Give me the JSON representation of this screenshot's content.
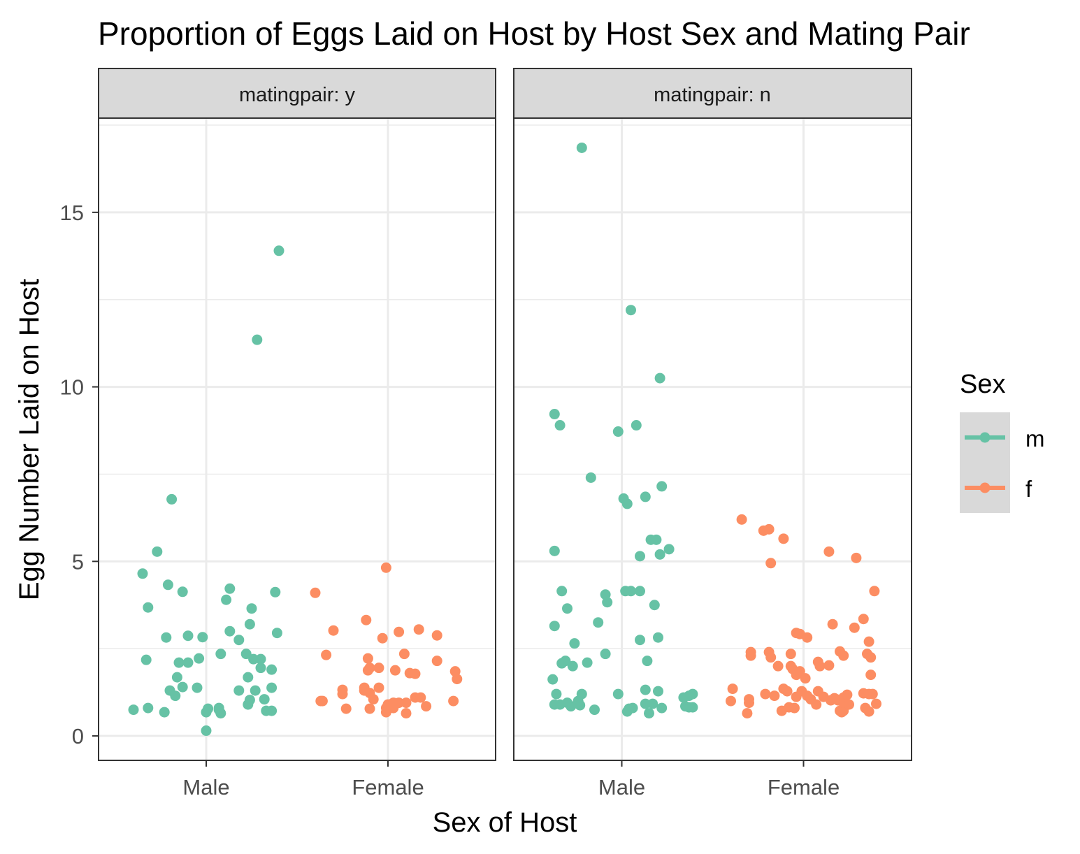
{
  "title": "Proportion of Eggs Laid on Host by Host Sex and Mating Pair",
  "chart_data": {
    "type": "scatter",
    "title": "Proportion of Eggs Laid on Host by Host Sex and Mating Pair",
    "xlabel": "Sex of Host",
    "ylabel": "Egg Number Laid on Host",
    "categories": [
      "Male",
      "Female"
    ],
    "ylim": [
      -0.7,
      17.7
    ],
    "yticks": [
      0,
      5,
      10,
      15
    ],
    "grid": true,
    "legend": {
      "title": "Sex",
      "position": "right",
      "entries": [
        {
          "label": "m",
          "color": "#66c2a5"
        },
        {
          "label": "f",
          "color": "#fc8d62"
        }
      ]
    },
    "panels": [
      {
        "label": "matingpair: y",
        "series": [
          {
            "name": "m",
            "category": "Male",
            "color": "#66c2a5",
            "points": [
              [
                -0.4,
                0.75
              ],
              [
                -0.35,
                4.65
              ],
              [
                -0.33,
                2.18
              ],
              [
                -0.32,
                3.68
              ],
              [
                -0.32,
                0.8
              ],
              [
                -0.27,
                5.28
              ],
              [
                -0.23,
                0.68
              ],
              [
                -0.22,
                2.82
              ],
              [
                -0.21,
                4.33
              ],
              [
                -0.2,
                1.3
              ],
              [
                -0.19,
                6.78
              ],
              [
                -0.17,
                1.15
              ],
              [
                -0.16,
                1.68
              ],
              [
                -0.15,
                2.1
              ],
              [
                -0.13,
                4.13
              ],
              [
                -0.13,
                1.4
              ],
              [
                -0.1,
                2.87
              ],
              [
                -0.1,
                2.1
              ],
              [
                -0.05,
                1.38
              ],
              [
                -0.04,
                2.22
              ],
              [
                -0.02,
                2.83
              ],
              [
                0.0,
                0.15
              ],
              [
                0.0,
                0.68
              ],
              [
                0.01,
                0.78
              ],
              [
                0.07,
                0.75
              ],
              [
                0.07,
                0.8
              ],
              [
                0.08,
                0.65
              ],
              [
                0.08,
                2.35
              ],
              [
                0.11,
                3.9
              ],
              [
                0.13,
                4.22
              ],
              [
                0.13,
                3.0
              ],
              [
                0.18,
                2.75
              ],
              [
                0.18,
                1.3
              ],
              [
                0.22,
                2.35
              ],
              [
                0.23,
                0.9
              ],
              [
                0.23,
                1.68
              ],
              [
                0.24,
                1.03
              ],
              [
                0.24,
                3.2
              ],
              [
                0.25,
                3.65
              ],
              [
                0.26,
                2.2
              ],
              [
                0.27,
                1.3
              ],
              [
                0.28,
                11.35
              ],
              [
                0.3,
                1.95
              ],
              [
                0.3,
                2.2
              ],
              [
                0.32,
                1.05
              ],
              [
                0.33,
                0.72
              ],
              [
                0.36,
                0.72
              ],
              [
                0.36,
                1.38
              ],
              [
                0.36,
                1.9
              ],
              [
                0.38,
                4.12
              ],
              [
                0.39,
                2.95
              ],
              [
                0.4,
                13.9
              ]
            ]
          },
          {
            "name": "f",
            "category": "Female",
            "color": "#fc8d62",
            "points": [
              [
                -0.4,
                4.1
              ],
              [
                -0.37,
                1.0
              ],
              [
                -0.36,
                1.0
              ],
              [
                -0.34,
                2.32
              ],
              [
                -0.3,
                3.02
              ],
              [
                -0.25,
                1.2
              ],
              [
                -0.25,
                1.32
              ],
              [
                -0.23,
                0.78
              ],
              [
                -0.13,
                1.3
              ],
              [
                -0.13,
                1.38
              ],
              [
                -0.12,
                3.32
              ],
              [
                -0.11,
                2.22
              ],
              [
                -0.11,
                1.88
              ],
              [
                -0.1,
                1.95
              ],
              [
                -0.1,
                1.23
              ],
              [
                -0.1,
                0.78
              ],
              [
                -0.08,
                1.05
              ],
              [
                -0.05,
                1.38
              ],
              [
                -0.05,
                1.95
              ],
              [
                -0.03,
                2.8
              ],
              [
                -0.01,
                4.82
              ],
              [
                -0.01,
                0.8
              ],
              [
                -0.01,
                0.68
              ],
              [
                0.0,
                0.9
              ],
              [
                0.03,
                0.95
              ],
              [
                0.03,
                0.8
              ],
              [
                0.04,
                1.88
              ],
              [
                0.06,
                0.95
              ],
              [
                0.06,
                2.98
              ],
              [
                0.09,
                2.35
              ],
              [
                0.1,
                0.95
              ],
              [
                0.1,
                0.65
              ],
              [
                0.12,
                1.8
              ],
              [
                0.15,
                1.78
              ],
              [
                0.15,
                1.1
              ],
              [
                0.17,
                3.05
              ],
              [
                0.18,
                1.1
              ],
              [
                0.21,
                0.85
              ],
              [
                0.27,
                2.88
              ],
              [
                0.27,
                2.15
              ],
              [
                0.36,
                1.0
              ],
              [
                0.37,
                1.85
              ],
              [
                0.38,
                1.63
              ]
            ]
          }
        ]
      },
      {
        "label": "matingpair: n",
        "series": [
          {
            "name": "m",
            "category": "Male",
            "color": "#66c2a5",
            "points": [
              [
                -0.38,
                1.62
              ],
              [
                -0.37,
                3.15
              ],
              [
                -0.37,
                0.9
              ],
              [
                -0.37,
                5.3
              ],
              [
                -0.37,
                9.22
              ],
              [
                -0.36,
                1.2
              ],
              [
                -0.34,
                0.9
              ],
              [
                -0.34,
                8.9
              ],
              [
                -0.33,
                4.15
              ],
              [
                -0.33,
                2.08
              ],
              [
                -0.31,
                2.15
              ],
              [
                -0.3,
                0.95
              ],
              [
                -0.3,
                3.65
              ],
              [
                -0.28,
                0.85
              ],
              [
                -0.27,
                2.0
              ],
              [
                -0.26,
                2.65
              ],
              [
                -0.24,
                1.0
              ],
              [
                -0.23,
                0.88
              ],
              [
                -0.22,
                1.2
              ],
              [
                -0.22,
                16.85
              ],
              [
                -0.19,
                2.1
              ],
              [
                -0.17,
                7.4
              ],
              [
                -0.15,
                0.75
              ],
              [
                -0.13,
                3.25
              ],
              [
                -0.09,
                2.35
              ],
              [
                -0.09,
                4.05
              ],
              [
                -0.08,
                3.83
              ],
              [
                -0.02,
                1.2
              ],
              [
                -0.02,
                8.72
              ],
              [
                0.01,
                6.8
              ],
              [
                0.02,
                4.15
              ],
              [
                0.03,
                6.65
              ],
              [
                0.03,
                0.7
              ],
              [
                0.04,
                0.78
              ],
              [
                0.05,
                12.2
              ],
              [
                0.05,
                4.15
              ],
              [
                0.06,
                0.8
              ],
              [
                0.08,
                8.9
              ],
              [
                0.1,
                2.75
              ],
              [
                0.1,
                5.15
              ],
              [
                0.1,
                4.15
              ],
              [
                0.13,
                6.85
              ],
              [
                0.13,
                1.32
              ],
              [
                0.13,
                0.92
              ],
              [
                0.14,
                2.15
              ],
              [
                0.15,
                0.65
              ],
              [
                0.16,
                5.62
              ],
              [
                0.17,
                0.92
              ],
              [
                0.18,
                3.75
              ],
              [
                0.19,
                5.62
              ],
              [
                0.2,
                2.82
              ],
              [
                0.2,
                1.28
              ],
              [
                0.21,
                5.2
              ],
              [
                0.21,
                10.25
              ],
              [
                0.22,
                0.8
              ],
              [
                0.22,
                7.15
              ],
              [
                0.26,
                5.35
              ],
              [
                0.34,
                1.1
              ],
              [
                0.35,
                0.85
              ],
              [
                0.37,
                0.82
              ],
              [
                0.37,
                1.15
              ],
              [
                0.39,
                1.2
              ],
              [
                0.39,
                0.82
              ]
            ]
          },
          {
            "name": "f",
            "category": "Female",
            "color": "#fc8d62",
            "points": [
              [
                -0.4,
                1.0
              ],
              [
                -0.39,
                1.35
              ],
              [
                -0.34,
                6.2
              ],
              [
                -0.31,
                0.65
              ],
              [
                -0.3,
                0.95
              ],
              [
                -0.3,
                1.05
              ],
              [
                -0.29,
                2.3
              ],
              [
                -0.29,
                2.4
              ],
              [
                -0.22,
                5.88
              ],
              [
                -0.21,
                1.2
              ],
              [
                -0.19,
                2.4
              ],
              [
                -0.19,
                5.92
              ],
              [
                -0.18,
                2.25
              ],
              [
                -0.18,
                4.95
              ],
              [
                -0.16,
                1.15
              ],
              [
                -0.14,
                2.0
              ],
              [
                -0.12,
                0.72
              ],
              [
                -0.11,
                1.35
              ],
              [
                -0.11,
                5.65
              ],
              [
                -0.09,
                1.28
              ],
              [
                -0.08,
                0.82
              ],
              [
                -0.07,
                2.35
              ],
              [
                -0.07,
                2.0
              ],
              [
                -0.06,
                1.92
              ],
              [
                -0.05,
                0.8
              ],
              [
                -0.04,
                1.75
              ],
              [
                -0.04,
                1.12
              ],
              [
                -0.04,
                2.95
              ],
              [
                -0.02,
                1.85
              ],
              [
                -0.02,
                2.92
              ],
              [
                -0.01,
                1.28
              ],
              [
                0.01,
                1.65
              ],
              [
                0.02,
                2.82
              ],
              [
                0.02,
                1.15
              ],
              [
                0.04,
                1.05
              ],
              [
                0.07,
                0.9
              ],
              [
                0.08,
                1.28
              ],
              [
                0.08,
                2.12
              ],
              [
                0.09,
                2.0
              ],
              [
                0.11,
                1.12
              ],
              [
                0.14,
                5.28
              ],
              [
                0.14,
                2.02
              ],
              [
                0.15,
                1.02
              ],
              [
                0.16,
                3.2
              ],
              [
                0.17,
                1.08
              ],
              [
                0.18,
                1.05
              ],
              [
                0.19,
                1.02
              ],
              [
                0.2,
                0.72
              ],
              [
                0.2,
                2.42
              ],
              [
                0.21,
                0.68
              ],
              [
                0.22,
                0.72
              ],
              [
                0.22,
                0.95
              ],
              [
                0.22,
                2.3
              ],
              [
                0.22,
                1.1
              ],
              [
                0.24,
                1.18
              ],
              [
                0.25,
                0.9
              ],
              [
                0.28,
                3.1
              ],
              [
                0.29,
                5.1
              ],
              [
                0.33,
                3.35
              ],
              [
                0.33,
                1.22
              ],
              [
                0.34,
                0.8
              ],
              [
                0.35,
                2.35
              ],
              [
                0.36,
                1.2
              ],
              [
                0.36,
                2.7
              ],
              [
                0.36,
                0.7
              ],
              [
                0.37,
                2.25
              ],
              [
                0.37,
                1.75
              ],
              [
                0.38,
                1.2
              ],
              [
                0.39,
                4.15
              ],
              [
                0.4,
                0.92
              ]
            ]
          }
        ]
      }
    ]
  }
}
